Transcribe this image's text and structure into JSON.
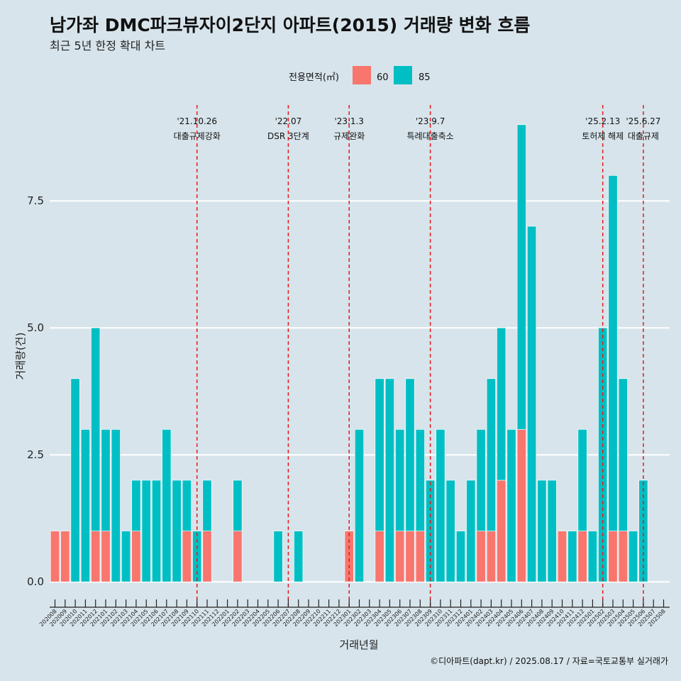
{
  "chart_data": {
    "type": "bar",
    "stacked": true,
    "title": "남가좌 DMC파크뷰자이2단지 아파트(2015) 거래량 변화 흐름",
    "subtitle": "최근 5년 한정 확대 차트",
    "xlabel": "거래년월",
    "ylabel": "거래량(건)",
    "ylim": [
      -0.5,
      9.5
    ],
    "yticks": [
      0,
      2.5,
      5,
      7.5
    ],
    "ytick_labels": [
      "0.0",
      "2.5",
      "5.0",
      "7.5"
    ],
    "legend": {
      "title": "전용면적(㎡)",
      "position": "top",
      "entries": [
        "60",
        "85"
      ]
    },
    "colors": {
      "60": "#f8766d",
      "85": "#00bfc4",
      "event_line": "#e41a1c",
      "grid": "#ffffff"
    },
    "categories": [
      "202008",
      "202009",
      "202010",
      "202011",
      "202012",
      "202101",
      "202102",
      "202103",
      "202104",
      "202105",
      "202106",
      "202107",
      "202108",
      "202109",
      "202110",
      "202111",
      "202112",
      "202201",
      "202202",
      "202203",
      "202204",
      "202205",
      "202206",
      "202207",
      "202208",
      "202209",
      "202210",
      "202211",
      "202212",
      "202301",
      "202302",
      "202303",
      "202304",
      "202305",
      "202306",
      "202307",
      "202308",
      "202309",
      "202310",
      "202311",
      "202312",
      "202401",
      "202402",
      "202403",
      "202404",
      "202405",
      "202406",
      "202407",
      "202408",
      "202409",
      "202410",
      "202411",
      "202412",
      "202501",
      "202502",
      "202503",
      "202504",
      "202505",
      "202506",
      "202507",
      "202508"
    ],
    "series": [
      {
        "name": "60",
        "values": [
          1,
          1,
          0,
          0,
          1,
          1,
          0,
          0,
          1,
          0,
          0,
          0,
          0,
          1,
          0,
          1,
          0,
          0,
          1,
          0,
          0,
          0,
          0,
          0,
          0,
          0,
          0,
          0,
          0,
          1,
          0,
          0,
          1,
          0,
          1,
          1,
          1,
          0,
          0,
          0,
          0,
          0,
          1,
          1,
          2,
          0,
          3,
          0,
          0,
          0,
          1,
          0,
          1,
          0,
          0,
          1,
          1,
          0,
          0,
          0,
          0
        ]
      },
      {
        "name": "85",
        "values": [
          0,
          0,
          4,
          3,
          4,
          2,
          3,
          1,
          1,
          2,
          2,
          3,
          2,
          1,
          1,
          1,
          0,
          0,
          1,
          0,
          0,
          0,
          1,
          0,
          1,
          0,
          0,
          0,
          0,
          0,
          3,
          0,
          3,
          4,
          2,
          3,
          2,
          2,
          3,
          2,
          1,
          2,
          2,
          3,
          3,
          3,
          6,
          7,
          2,
          2,
          0,
          1,
          2,
          1,
          5,
          7,
          3,
          1,
          2,
          0,
          0
        ]
      }
    ],
    "events": [
      {
        "category": "202110",
        "date": "'21.10.26",
        "label": "대출규제강화"
      },
      {
        "category": "202207",
        "date": "'22.07",
        "label": "DSR 3단계"
      },
      {
        "category": "202301",
        "date": "'23.1.3",
        "label": "규제완화"
      },
      {
        "category": "202309",
        "date": "'23.9.7",
        "label": "특례대출축소"
      },
      {
        "category": "202502",
        "date": "'25.2.13",
        "label": "토허제 해제"
      },
      {
        "category": "202506",
        "date": "'25.6.27",
        "label": "대출규제"
      }
    ]
  },
  "caption": "©디아파트(dapt.kr) / 2025.08.17 / 자료=국토교통부 실거래가"
}
